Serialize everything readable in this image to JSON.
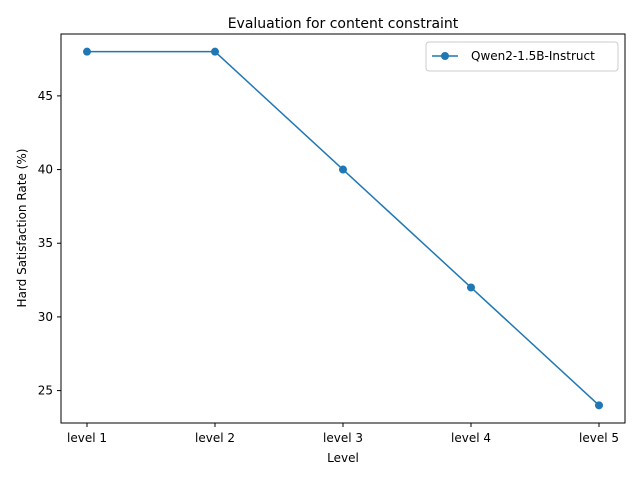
{
  "chart_data": {
    "type": "line",
    "title": "Evaluation for content constraint",
    "xlabel": "Level",
    "ylabel": "Hard Satisfaction Rate (%)",
    "categories": [
      "level 1",
      "level 2",
      "level 3",
      "level 4",
      "level 5"
    ],
    "series": [
      {
        "name": "Qwen2-1.5B-Instruct",
        "values": [
          48,
          48,
          40,
          32,
          24
        ],
        "color": "#1f77b4",
        "marker": "circle"
      }
    ],
    "yticks": [
      25,
      30,
      35,
      40,
      45
    ],
    "ylim": [
      22.8,
      49.2
    ],
    "grid": false,
    "legend_position": "top-right"
  }
}
